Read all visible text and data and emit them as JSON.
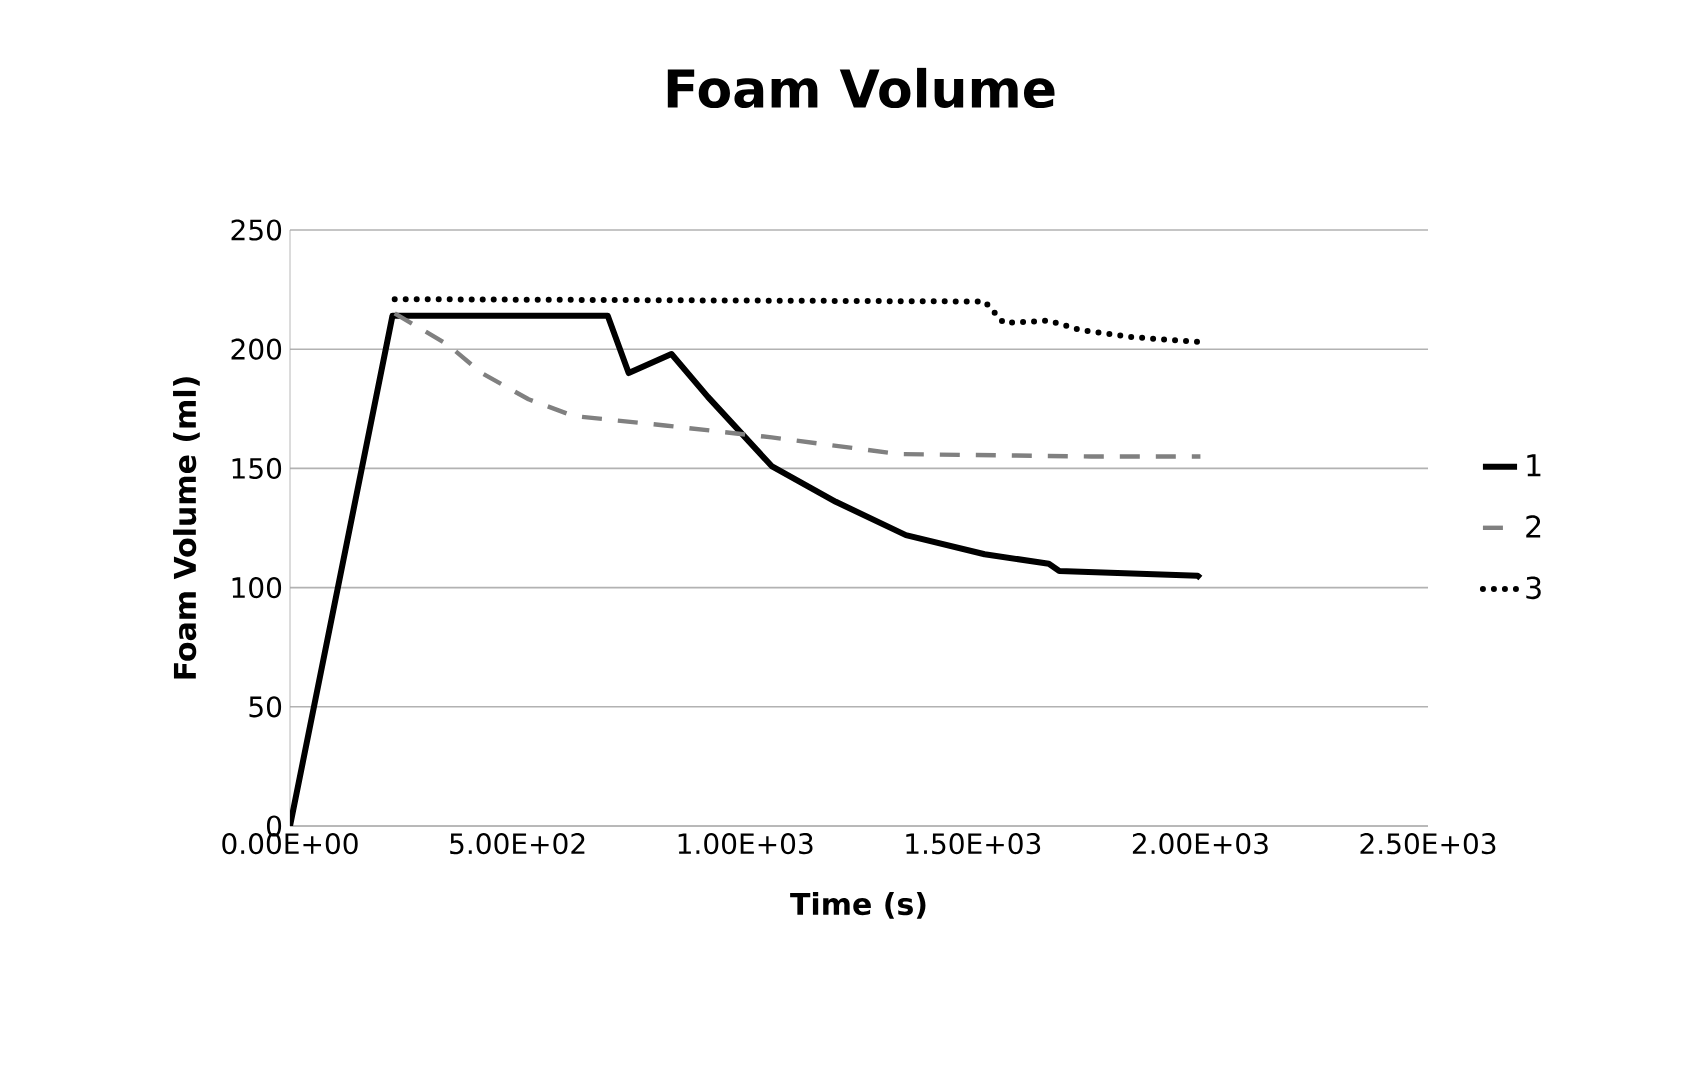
{
  "chart_data": {
    "type": "line",
    "title": "Foam Volume",
    "xlabel": "Time (s)",
    "ylabel": "Foam Volume (ml)",
    "xlim": [
      0,
      2500
    ],
    "ylim": [
      0,
      250
    ],
    "xticks": [
      {
        "value": 0,
        "label": "0.00E+00"
      },
      {
        "value": 500,
        "label": "5.00E+02"
      },
      {
        "value": 1000,
        "label": "1.00E+03"
      },
      {
        "value": 1500,
        "label": "1.50E+03"
      },
      {
        "value": 2000,
        "label": "2.00E+03"
      },
      {
        "value": 2500,
        "label": "2.50E+03"
      }
    ],
    "yticks": [
      0,
      50,
      100,
      150,
      200,
      250
    ],
    "grid": "y",
    "legend": "right",
    "marker": "none",
    "series": [
      {
        "name": "1",
        "color": "#000000",
        "line_style": "solid",
        "x": [
          0,
          225,
          698,
          744,
          838,
          918,
          1058,
          1199,
          1353,
          1526,
          1667,
          1690,
          1994,
          2000
        ],
        "values": [
          0,
          214,
          214,
          190,
          198,
          180,
          151,
          136,
          122,
          114,
          110,
          107,
          105,
          104
        ]
      },
      {
        "name": "2",
        "color": "#808080",
        "line_style": "dashed",
        "x": [
          230,
          346,
          421,
          524,
          623,
          824,
          1058,
          1339,
          1760,
          2000
        ],
        "values": [
          215,
          202,
          190,
          179,
          172,
          168,
          163,
          156,
          155,
          155
        ]
      },
      {
        "name": "3",
        "color": "#000000",
        "line_style": "dotted",
        "x": [
          230,
          1526,
          1568,
          1667,
          1737,
          1854,
          2000
        ],
        "values": [
          221,
          220,
          211,
          212,
          208,
          205,
          203
        ]
      }
    ]
  }
}
